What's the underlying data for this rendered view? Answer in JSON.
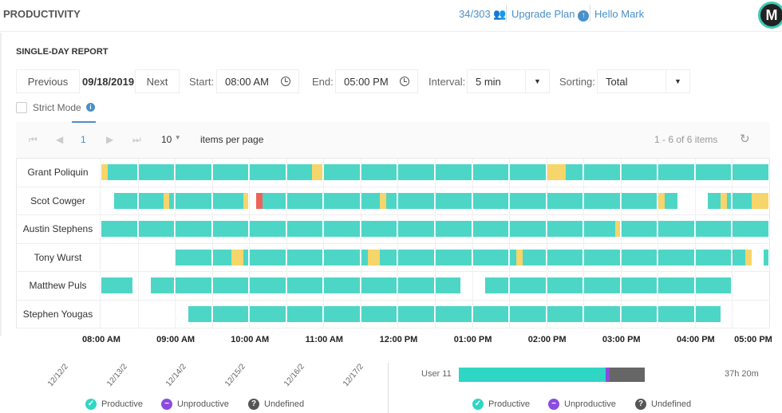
{
  "header": {
    "title": "PRODUCTIVITY",
    "seats": "34/303",
    "upgrade": "Upgrade Plan",
    "hello": "Hello Mark",
    "avatar_letter": "M"
  },
  "report": {
    "title": "SINGLE-DAY REPORT",
    "previous": "Previous",
    "date": "09/18/2019",
    "next": "Next",
    "start_label": "Start:",
    "start": "08:00 AM",
    "end_label": "End:",
    "end": "05:00 PM",
    "interval_label": "Interval:",
    "interval": "5 min",
    "sorting_label": "Sorting:",
    "sorting": "Total",
    "strict_mode": "Strict Mode"
  },
  "pager": {
    "page": "1",
    "page_size": "10",
    "items_per_page": "items per page",
    "summary": "1 - 6 of 6 items"
  },
  "colors": {
    "productive": "#4dd6c6",
    "undefined": "#f6d56a",
    "unproductive": "#ec6459",
    "teal": "#2fd6c4",
    "purple": "#8b4be0",
    "gray": "#666666"
  },
  "timeline": {
    "start_min": 0,
    "end_min": 540,
    "block_min": 30,
    "ticks": [
      "08:00 AM",
      "09:00 AM",
      "10:00 AM",
      "11:00 AM",
      "12:00 PM",
      "01:00 PM",
      "02:00 PM",
      "03:00 PM",
      "04:00 PM",
      "05:00 PM"
    ],
    "rows": [
      {
        "name": "Grant Poliquin",
        "segments": [
          [
            0,
            5,
            "undefined"
          ],
          [
            5,
            170,
            "productive"
          ],
          [
            170,
            180,
            "undefined"
          ],
          [
            180,
            360,
            "productive"
          ],
          [
            360,
            375,
            "undefined"
          ],
          [
            375,
            540,
            "productive"
          ]
        ]
      },
      {
        "name": "Scot Cowger",
        "segments": [
          [
            10,
            50,
            "productive"
          ],
          [
            50,
            55,
            "undefined"
          ],
          [
            55,
            115,
            "productive"
          ],
          [
            115,
            120,
            "undefined"
          ],
          [
            125,
            130,
            "unproductive"
          ],
          [
            130,
            225,
            "productive"
          ],
          [
            225,
            230,
            "undefined"
          ],
          [
            230,
            450,
            "productive"
          ],
          [
            450,
            455,
            "undefined"
          ],
          [
            455,
            465,
            "productive"
          ],
          [
            490,
            500,
            "productive"
          ],
          [
            500,
            505,
            "undefined"
          ],
          [
            505,
            525,
            "productive"
          ],
          [
            525,
            540,
            "undefined"
          ]
        ]
      },
      {
        "name": "Austin Stephens",
        "segments": [
          [
            0,
            415,
            "productive"
          ],
          [
            415,
            420,
            "undefined"
          ],
          [
            420,
            540,
            "productive"
          ]
        ]
      },
      {
        "name": "Tony Wurst",
        "segments": [
          [
            60,
            105,
            "productive"
          ],
          [
            105,
            115,
            "undefined"
          ],
          [
            115,
            215,
            "productive"
          ],
          [
            215,
            225,
            "undefined"
          ],
          [
            225,
            335,
            "productive"
          ],
          [
            335,
            340,
            "undefined"
          ],
          [
            340,
            520,
            "productive"
          ],
          [
            520,
            525,
            "undefined"
          ],
          [
            535,
            540,
            "productive"
          ]
        ]
      },
      {
        "name": "Matthew Puls",
        "segments": [
          [
            0,
            25,
            "productive"
          ],
          [
            40,
            290,
            "productive"
          ],
          [
            310,
            510,
            "productive"
          ]
        ]
      },
      {
        "name": "Stephen Yougas",
        "segments": [
          [
            70,
            500,
            "productive"
          ]
        ]
      }
    ]
  },
  "bottom_left": {
    "dates": [
      "12/12/2",
      "12/13/2",
      "12/14/2",
      "12/15/2",
      "12/16/2",
      "12/17/2"
    ]
  },
  "bottom_right": {
    "user": "User 11",
    "total": "37h 20m",
    "bar_fractions": {
      "productive": 0.79,
      "unproductive": 0.02,
      "undefined": 0.19
    }
  },
  "legend": {
    "productive": "Productive",
    "unproductive": "Unproductive",
    "undefined": "Undefined"
  }
}
